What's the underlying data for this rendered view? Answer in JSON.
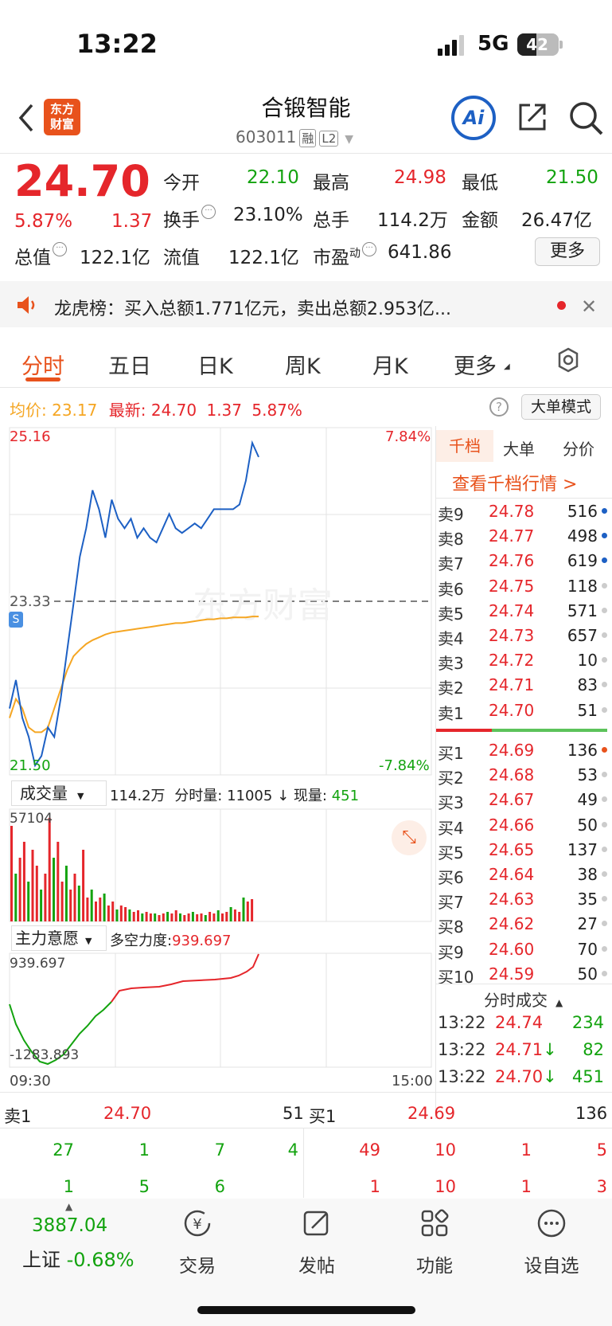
{
  "status_bar": {
    "time": "13:22",
    "network": "5G",
    "battery": "42"
  },
  "header": {
    "logo_lines": [
      "东方",
      "财富"
    ],
    "title": "合锻智能",
    "code": "603011",
    "tag_margin": "融",
    "tag_l2": "L2",
    "ai_label": "Ai"
  },
  "quote": {
    "price": "24.70",
    "change_pct": "5.87%",
    "change": "1.37",
    "open_label": "今开",
    "open": "22.10",
    "high_label": "最高",
    "high": "24.98",
    "low_label": "最低",
    "low": "21.50",
    "turnover_label": "换手",
    "turnover": "23.10%",
    "volume_label": "总手",
    "volume": "114.2万",
    "amount_label": "金额",
    "amount": "26.47亿",
    "mktcap_label": "总值",
    "mktcap": "122.1亿",
    "float_label": "流值",
    "float": "122.1亿",
    "pe_label": "市盈",
    "pe_sup": "动",
    "pe": "641.86",
    "more_button": "更多"
  },
  "news": {
    "text": "龙虎榜：买入总额1.771亿元，卖出总额2.953亿..."
  },
  "tabs": [
    "分时",
    "五日",
    "日K",
    "周K",
    "月K",
    "更多"
  ],
  "chart_header": {
    "avg_label": "均价:",
    "avg": "23.17",
    "latest_label": "最新:",
    "latest": "24.70",
    "change": "1.37",
    "change_pct": "5.87%",
    "mode_button": "大单模式"
  },
  "chart_data": {
    "type": "line",
    "y_max_label": "25.16",
    "y_mid_label": "23.33",
    "y_min_label": "21.50",
    "pct_max_label": "7.84%",
    "pct_min_label": "-7.84%",
    "x_start": "09:30",
    "x_end": "15:00",
    "ylim": [
      21.5,
      25.16
    ],
    "series": [
      {
        "values": [
          22.2,
          22.5,
          22.1,
          21.9,
          21.6,
          21.7,
          22.0,
          21.9,
          22.3,
          22.8,
          23.3,
          23.8,
          24.1,
          24.5,
          24.3,
          24.0,
          24.4,
          24.2,
          24.1,
          24.2,
          24.0,
          24.1,
          24.0,
          23.95,
          24.1,
          24.25,
          24.1,
          24.05,
          24.1,
          24.15,
          24.1,
          24.2,
          24.3,
          24.3,
          24.3,
          24.3,
          24.35,
          24.6,
          25.0,
          24.85
        ]
      },
      {
        "values": [
          22.1,
          22.3,
          22.2,
          22.0,
          21.95,
          21.95,
          22.0,
          22.2,
          22.4,
          22.6,
          22.75,
          22.82,
          22.88,
          22.92,
          22.95,
          22.98,
          23.0,
          23.01,
          23.02,
          23.03,
          23.04,
          23.05,
          23.06,
          23.07,
          23.08,
          23.09,
          23.1,
          23.1,
          23.11,
          23.12,
          23.13,
          23.14,
          23.14,
          23.15,
          23.15,
          23.16,
          23.16,
          23.16,
          23.17,
          23.17
        ]
      }
    ]
  },
  "volume_panel": {
    "selector": "成交量",
    "total": "114.2万",
    "minute_label": "分时量:",
    "minute": "11005",
    "now_label": "现量:",
    "now": "451",
    "max_label": "57104"
  },
  "flow_panel": {
    "selector": "主力意愿",
    "label": "多空力度:",
    "value": "939.697",
    "max_label": "939.697",
    "min_label": "-1283.893"
  },
  "depth": {
    "tabs": [
      "千档",
      "大单",
      "分价"
    ],
    "link": "查看千档行情 >",
    "asks": [
      {
        "label": "卖9",
        "price": "24.78",
        "vol": "516"
      },
      {
        "label": "卖8",
        "price": "24.77",
        "vol": "498"
      },
      {
        "label": "卖7",
        "price": "24.76",
        "vol": "619"
      },
      {
        "label": "卖6",
        "price": "24.75",
        "vol": "118"
      },
      {
        "label": "卖5",
        "price": "24.74",
        "vol": "571"
      },
      {
        "label": "卖4",
        "price": "24.73",
        "vol": "657"
      },
      {
        "label": "卖3",
        "price": "24.72",
        "vol": "10"
      },
      {
        "label": "卖2",
        "price": "24.71",
        "vol": "83"
      },
      {
        "label": "卖1",
        "price": "24.70",
        "vol": "51"
      }
    ],
    "bids": [
      {
        "label": "买1",
        "price": "24.69",
        "vol": "136"
      },
      {
        "label": "买2",
        "price": "24.68",
        "vol": "53"
      },
      {
        "label": "买3",
        "price": "24.67",
        "vol": "49"
      },
      {
        "label": "买4",
        "price": "24.66",
        "vol": "50"
      },
      {
        "label": "买5",
        "price": "24.65",
        "vol": "137"
      },
      {
        "label": "买6",
        "price": "24.64",
        "vol": "38"
      },
      {
        "label": "买7",
        "price": "24.63",
        "vol": "35"
      },
      {
        "label": "买8",
        "price": "24.62",
        "vol": "27"
      },
      {
        "label": "买9",
        "price": "24.60",
        "vol": "70"
      },
      {
        "label": "买10",
        "price": "24.59",
        "vol": "50"
      }
    ],
    "trades_title": "分时成交",
    "trades": [
      {
        "time": "13:22",
        "price": "24.74",
        "arrow": "",
        "vol": "234"
      },
      {
        "time": "13:22",
        "price": "24.71",
        "arrow": "↓",
        "vol": "82"
      },
      {
        "time": "13:22",
        "price": "24.70",
        "arrow": "↓",
        "vol": "451"
      }
    ]
  },
  "level_bar": {
    "ask_label": "卖1",
    "ask_price": "24.70",
    "ask_vol": "51",
    "bid_label": "买1",
    "bid_price": "24.69",
    "bid_vol": "136",
    "ask_queue": [
      "27",
      "1",
      "7",
      "4",
      "1",
      "5",
      "6"
    ],
    "bid_queue": [
      "49",
      "10",
      "1",
      "5",
      "1",
      "10",
      "1",
      "3"
    ]
  },
  "bottom_nav": {
    "index_value": "3887.04",
    "index_name": "上证",
    "index_change": "-0.68%",
    "items": [
      "交易",
      "发帖",
      "功能",
      "设自选"
    ]
  }
}
